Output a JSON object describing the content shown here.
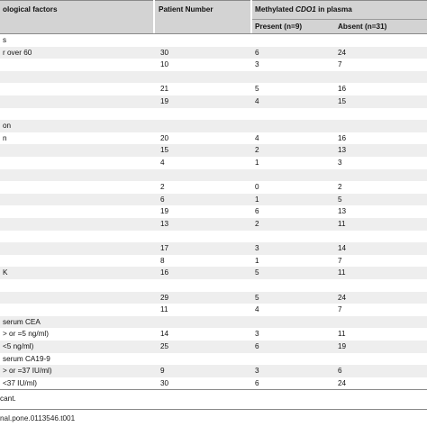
{
  "table": {
    "headers": {
      "factor": "ological factors",
      "patient_number": "Patient Number",
      "methylated_prefix": "Methylated ",
      "methylated_gene": "CDO1",
      "methylated_suffix": " in plasma",
      "present": "Present (n=9)",
      "absent": "Absent (n=31)"
    },
    "rows": [
      {
        "factor": "s",
        "patients": "",
        "present": "",
        "absent": ""
      },
      {
        "factor": "r over 60",
        "patients": "30",
        "present": "6",
        "absent": "24"
      },
      {
        "factor": "",
        "patients": "10",
        "present": "3",
        "absent": "7"
      },
      {
        "factor": "",
        "patients": "",
        "present": "",
        "absent": ""
      },
      {
        "factor": "",
        "patients": "21",
        "present": "5",
        "absent": "16"
      },
      {
        "factor": "",
        "patients": "19",
        "present": "4",
        "absent": "15"
      },
      {
        "factor": "",
        "patients": "",
        "present": "",
        "absent": ""
      },
      {
        "factor": "on",
        "patients": "",
        "present": "",
        "absent": ""
      },
      {
        "factor": "n",
        "patients": "20",
        "present": "4",
        "absent": "16"
      },
      {
        "factor": "",
        "patients": "15",
        "present": "2",
        "absent": "13"
      },
      {
        "factor": "",
        "patients": "4",
        "present": "1",
        "absent": "3"
      },
      {
        "factor": "",
        "patients": "",
        "present": "",
        "absent": ""
      },
      {
        "factor": "",
        "patients": "2",
        "present": "0",
        "absent": "2"
      },
      {
        "factor": "",
        "patients": "6",
        "present": "1",
        "absent": "5"
      },
      {
        "factor": "",
        "patients": "19",
        "present": "6",
        "absent": "13"
      },
      {
        "factor": "",
        "patients": "13",
        "present": "2",
        "absent": "11"
      },
      {
        "factor": "",
        "patients": "",
        "present": "",
        "absent": ""
      },
      {
        "factor": "",
        "patients": "17",
        "present": "3",
        "absent": "14"
      },
      {
        "factor": "",
        "patients": "8",
        "present": "1",
        "absent": "7"
      },
      {
        "factor": "K",
        "patients": "16",
        "present": "5",
        "absent": "11"
      },
      {
        "factor": "",
        "patients": "",
        "present": "",
        "absent": ""
      },
      {
        "factor": "",
        "patients": "29",
        "present": "5",
        "absent": "24"
      },
      {
        "factor": "",
        "patients": "11",
        "present": "4",
        "absent": "7"
      },
      {
        "factor": " serum CEA",
        "patients": "",
        "present": "",
        "absent": ""
      },
      {
        "factor": "> or =5 ng/ml)",
        "patients": "14",
        "present": "3",
        "absent": "11"
      },
      {
        "factor": "<5 ng/ml)",
        "patients": "25",
        "present": "6",
        "absent": "19"
      },
      {
        "factor": " serum CA19-9",
        "patients": "",
        "present": "",
        "absent": ""
      },
      {
        "factor": "> or =37 IU/ml)",
        "patients": "9",
        "present": "3",
        "absent": "6"
      },
      {
        "factor": "<37 IU/ml)",
        "patients": "30",
        "present": "6",
        "absent": "24"
      }
    ]
  },
  "footnote": "cant.",
  "doi": "nal.pone.0113546.t001"
}
